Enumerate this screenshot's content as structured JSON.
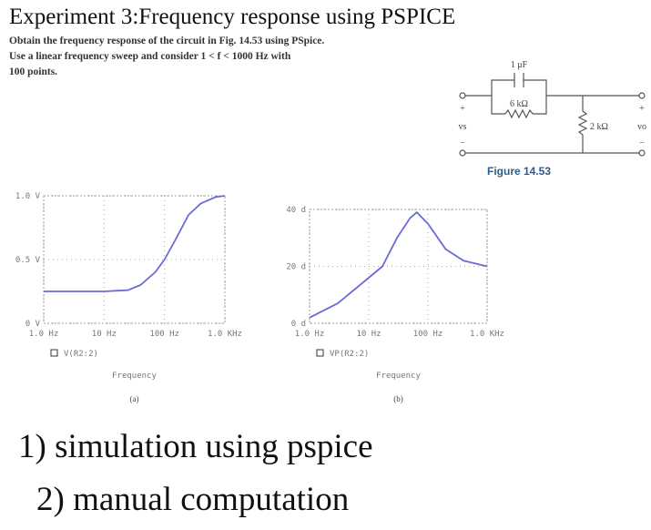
{
  "header": {
    "title": "Experiment 3:Frequency response using PSPICE"
  },
  "problem": {
    "lines": [
      "Obtain the frequency response of the circuit in Fig. 14.53 using PSpice.",
      "Use a linear frequency sweep and consider 1 < f < 1000 Hz with",
      "100 points."
    ]
  },
  "figure": {
    "caption": "Figure 14.53",
    "capacitor": "1 μF",
    "resistor1": "6 kΩ",
    "resistor2": "2 kΩ",
    "plus": "+",
    "minus": "−",
    "input": "vs",
    "output": "vo"
  },
  "chart_data": [
    {
      "type": "line",
      "xscale": "log",
      "xlabel": "Frequency",
      "caption": "(a)",
      "grid": true,
      "xlim": [
        1,
        1000
      ],
      "ylim": [
        0,
        1.0
      ],
      "xticks": [
        {
          "value": 1,
          "label": "1.0 Hz"
        },
        {
          "value": 10,
          "label": "10 Hz"
        },
        {
          "value": 100,
          "label": "100 Hz"
        },
        {
          "value": 1000,
          "label": "1.0 KHz"
        }
      ],
      "yticks": [
        {
          "value": 0,
          "label": "0 V"
        },
        {
          "value": 0.5,
          "label": "0.5 V"
        },
        {
          "value": 1.0,
          "label": "1.0 V"
        }
      ],
      "x": [
        1,
        10,
        25,
        40,
        70,
        100,
        150,
        250,
        400,
        700,
        1000
      ],
      "series": [
        {
          "name": "V(R2:2)",
          "color": "#6a6ad8",
          "values": [
            0.25,
            0.25,
            0.26,
            0.3,
            0.4,
            0.5,
            0.65,
            0.85,
            0.94,
            0.99,
            1.0
          ]
        }
      ]
    },
    {
      "type": "line",
      "xscale": "log",
      "xlabel": "Frequency",
      "caption": "(b)",
      "grid": true,
      "xlim": [
        1,
        1000
      ],
      "ylim": [
        0,
        40
      ],
      "xticks": [
        {
          "value": 1,
          "label": "1.0 Hz"
        },
        {
          "value": 10,
          "label": "10 Hz"
        },
        {
          "value": 100,
          "label": "100 Hz"
        },
        {
          "value": 1000,
          "label": "1.0 KHz"
        }
      ],
      "yticks": [
        {
          "value": 0,
          "label": "0 d"
        },
        {
          "value": 20,
          "label": "20 d"
        },
        {
          "value": 40,
          "label": "40 d"
        }
      ],
      "x": [
        1,
        3,
        10,
        17,
        30,
        50,
        65,
        100,
        200,
        400,
        1000
      ],
      "series": [
        {
          "name": "VP(R2:2)",
          "color": "#6a6ad8",
          "values": [
            2,
            7,
            16,
            20,
            30,
            37,
            39,
            35,
            26,
            22,
            20
          ]
        }
      ]
    }
  ],
  "tasks": [
    "1) simulation using pspice",
    "2) manual computation"
  ]
}
